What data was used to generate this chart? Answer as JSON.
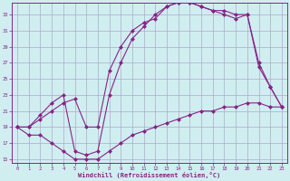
{
  "xlabel": "Windchill (Refroidissement éolien,°C)",
  "bg_color": "#d0eef0",
  "grid_color": "#aaaacc",
  "line_color": "#882288",
  "xlim": [
    -0.5,
    23.5
  ],
  "ylim": [
    14.5,
    34.5
  ],
  "xticks": [
    0,
    1,
    2,
    3,
    4,
    5,
    6,
    7,
    8,
    9,
    10,
    11,
    12,
    13,
    14,
    15,
    16,
    17,
    18,
    19,
    20,
    21,
    22,
    23
  ],
  "yticks": [
    15,
    17,
    19,
    21,
    23,
    25,
    27,
    29,
    31,
    33
  ],
  "line1_x": [
    0,
    1,
    2,
    3,
    4,
    5,
    6,
    7,
    8,
    9,
    10,
    11,
    12,
    13,
    14,
    15,
    16,
    17,
    18,
    19,
    20,
    21,
    22,
    23
  ],
  "line1_y": [
    19,
    18,
    18,
    17,
    16,
    15,
    15,
    15,
    16,
    17,
    18,
    18.5,
    19,
    19.5,
    20,
    20.5,
    21,
    21,
    21.5,
    21.5,
    22,
    22,
    21.5,
    21.5
  ],
  "line2_x": [
    0,
    1,
    2,
    3,
    4,
    5,
    6,
    7,
    8,
    9,
    10,
    11,
    12,
    13,
    14,
    15,
    16,
    17,
    18,
    19,
    20,
    21,
    22,
    23
  ],
  "line2_y": [
    19,
    19,
    20,
    21,
    22,
    22.5,
    19,
    19,
    26,
    29,
    31,
    32,
    32.5,
    34,
    34.5,
    34.5,
    34,
    33.5,
    33.5,
    33,
    33,
    26.5,
    24,
    21.5
  ],
  "line3_x": [
    0,
    1,
    2,
    3,
    4,
    5,
    6,
    7,
    8,
    9,
    10,
    11,
    12,
    13,
    14,
    15,
    16,
    17,
    18,
    19,
    20,
    21,
    22,
    23
  ],
  "line3_y": [
    19,
    19,
    20.5,
    22,
    23,
    16,
    15.5,
    16,
    23,
    27,
    30,
    31.5,
    33,
    34,
    34.5,
    34.5,
    34,
    33.5,
    33,
    32.5,
    33,
    27,
    24,
    21.5
  ]
}
